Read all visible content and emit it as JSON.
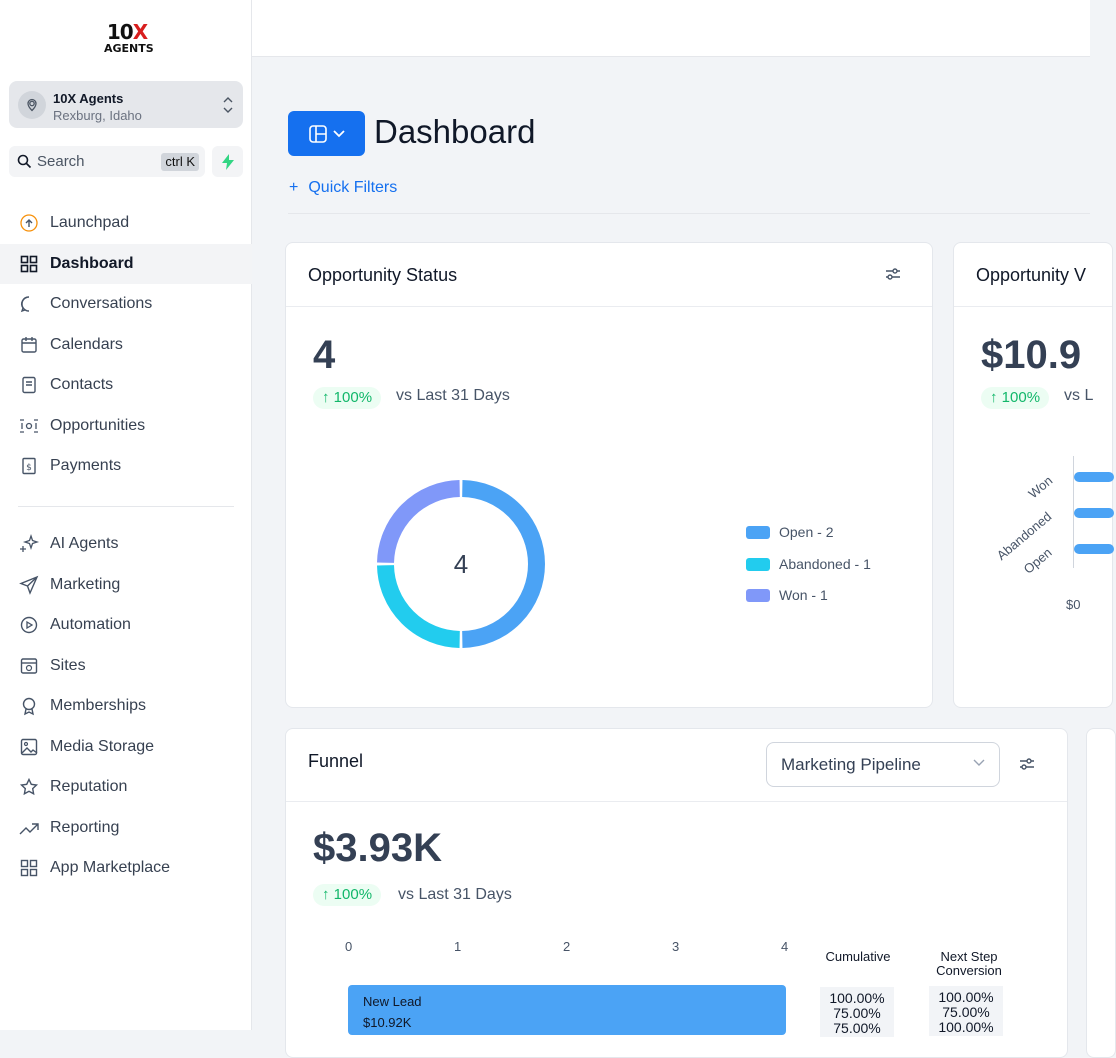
{
  "brand": {
    "logo_top": "10",
    "logo_x": "X",
    "logo_bottom": "AGENTS"
  },
  "account": {
    "name": "10X Agents",
    "location": "Rexburg, Idaho"
  },
  "search": {
    "placeholder": "Search",
    "shortcut": "ctrl K"
  },
  "nav_primary": [
    {
      "label": "Launchpad",
      "icon": "launchpad-icon"
    },
    {
      "label": "Dashboard",
      "icon": "dashboard-grid-icon",
      "active": true
    },
    {
      "label": "Conversations",
      "icon": "chat-bubble-icon"
    },
    {
      "label": "Calendars",
      "icon": "calendar-icon"
    },
    {
      "label": "Contacts",
      "icon": "contacts-book-icon"
    },
    {
      "label": "Opportunities",
      "icon": "opportunities-icon"
    },
    {
      "label": "Payments",
      "icon": "payments-icon"
    }
  ],
  "nav_secondary": [
    {
      "label": "AI Agents",
      "icon": "sparkle-icon"
    },
    {
      "label": "Marketing",
      "icon": "send-icon"
    },
    {
      "label": "Automation",
      "icon": "automation-icon"
    },
    {
      "label": "Sites",
      "icon": "sites-icon"
    },
    {
      "label": "Memberships",
      "icon": "badge-icon"
    },
    {
      "label": "Media Storage",
      "icon": "image-icon"
    },
    {
      "label": "Reputation",
      "icon": "star-icon"
    },
    {
      "label": "Reporting",
      "icon": "trend-icon"
    },
    {
      "label": "App Marketplace",
      "icon": "apps-grid-icon"
    }
  ],
  "header": {
    "title": "Dashboard",
    "quick_filters": "Quick Filters",
    "plus": "+"
  },
  "colors": {
    "primary": "#1570ef",
    "open": "#4ba3f5",
    "abandoned": "#22ccee",
    "won": "#8098f9",
    "positive": "#12b76a"
  },
  "opportunity_status": {
    "title": "Opportunity Status",
    "total": "4",
    "change": "100%",
    "compare": "vs Last 31 Days",
    "center": "4",
    "legend": [
      "Open - 2",
      "Abandoned - 1",
      "Won - 1"
    ]
  },
  "opportunity_value": {
    "title": "Opportunity V",
    "total": "$10.9",
    "change": "100%",
    "compare": "vs L",
    "labels": [
      "Won",
      "Abandoned",
      "Open"
    ],
    "axis_start": "$0"
  },
  "funnel": {
    "title": "Funnel",
    "pipeline": "Marketing Pipeline",
    "total": "$3.93K",
    "change": "100%",
    "compare": "vs Last 31 Days",
    "axis": [
      "0",
      "1",
      "2",
      "3",
      "4"
    ],
    "cumulative_header": "Cumulative",
    "next_step_header_1": "Next Step",
    "next_step_header_2": "Conversion",
    "stage_name": "New Lead",
    "stage_value": "$10.92K",
    "cumulative": [
      "100.00%",
      "75.00%",
      "75.00%"
    ],
    "next_step": [
      "100.00%",
      "75.00%",
      "100.00%"
    ]
  },
  "chart_data": {
    "type": "pie",
    "categories": [
      "Open",
      "Abandoned",
      "Won"
    ],
    "values": [
      2,
      1,
      1
    ]
  }
}
